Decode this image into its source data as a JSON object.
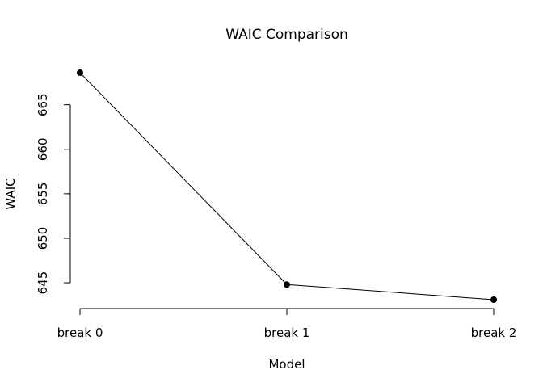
{
  "chart_data": {
    "type": "line",
    "title": "WAIC Comparison",
    "xlabel": "Model",
    "ylabel": "WAIC",
    "categories": [
      "break 0",
      "break 1",
      "break 2"
    ],
    "values": [
      668.6,
      644.8,
      643.1
    ],
    "yticks": [
      645,
      650,
      655,
      660,
      665
    ],
    "ytick_labels": [
      "645",
      "650",
      "655",
      "660",
      "665"
    ],
    "ylim": [
      643.1,
      668.6
    ],
    "grid": false,
    "legend": "none",
    "colors": {
      "line": "#000000",
      "marker": "#000000"
    }
  }
}
